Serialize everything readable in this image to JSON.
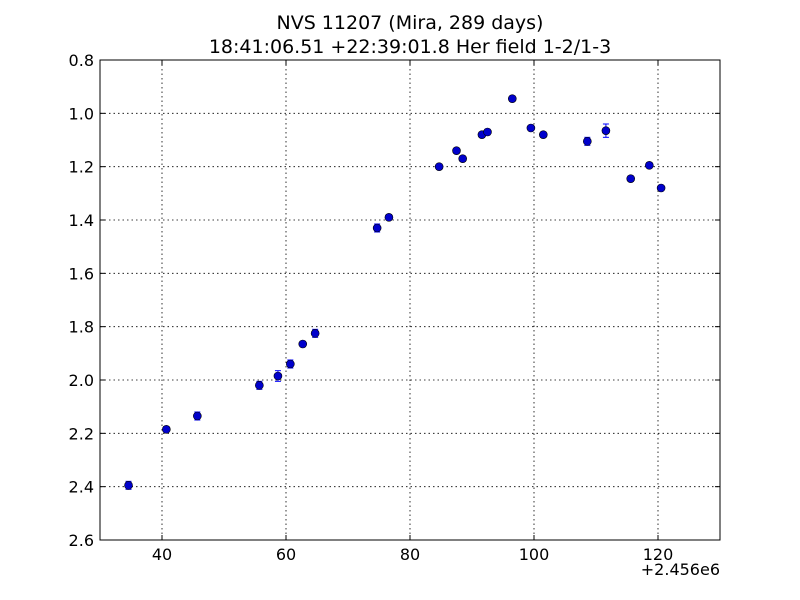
{
  "chart_data": {
    "type": "scatter",
    "title": "NVS 11207 (Mira, 289 days)",
    "subtitle": "18:41:06.51 +22:39:01.8 Her field 1-2/1-3",
    "xlabel": "",
    "ylabel": "",
    "x_offset_label": "+2.456e6",
    "xlim": [
      30,
      130
    ],
    "ylim": [
      2.6,
      0.8
    ],
    "y_inverted": true,
    "grid": true,
    "marker_color": "#0000cc",
    "errorbar_color": "#0000ff",
    "x_ticks": [
      40,
      60,
      80,
      100,
      120
    ],
    "y_ticks": [
      0.8,
      1.0,
      1.2,
      1.4,
      1.6,
      1.8,
      2.0,
      2.2,
      2.4,
      2.6
    ],
    "x_tick_labels": [
      "40",
      "60",
      "80",
      "100",
      "120"
    ],
    "y_tick_labels": [
      "0.8",
      "1.0",
      "1.2",
      "1.4",
      "1.6",
      "1.8",
      "2.0",
      "2.2",
      "2.4",
      "2.6"
    ],
    "points": [
      {
        "x": 34.6,
        "y": 2.395,
        "err": 0.015
      },
      {
        "x": 40.7,
        "y": 2.185,
        "err": 0.01
      },
      {
        "x": 45.7,
        "y": 2.135,
        "err": 0.015
      },
      {
        "x": 55.7,
        "y": 2.02,
        "err": 0.015
      },
      {
        "x": 58.7,
        "y": 1.985,
        "err": 0.02
      },
      {
        "x": 60.7,
        "y": 1.94,
        "err": 0.015
      },
      {
        "x": 62.7,
        "y": 1.865,
        "err": 0.01
      },
      {
        "x": 64.7,
        "y": 1.825,
        "err": 0.015
      },
      {
        "x": 74.7,
        "y": 1.43,
        "err": 0.015
      },
      {
        "x": 76.6,
        "y": 1.39,
        "err": 0.01
      },
      {
        "x": 84.7,
        "y": 1.2,
        "err": 0.01
      },
      {
        "x": 87.5,
        "y": 1.14,
        "err": 0.01
      },
      {
        "x": 88.5,
        "y": 1.17,
        "err": 0.01
      },
      {
        "x": 91.6,
        "y": 1.08,
        "err": 0.01
      },
      {
        "x": 92.5,
        "y": 1.07,
        "err": 0.01
      },
      {
        "x": 96.5,
        "y": 0.945,
        "err": 0.01
      },
      {
        "x": 99.5,
        "y": 1.055,
        "err": 0.01
      },
      {
        "x": 101.5,
        "y": 1.08,
        "err": 0.01
      },
      {
        "x": 108.6,
        "y": 1.105,
        "err": 0.015
      },
      {
        "x": 111.6,
        "y": 1.065,
        "err": 0.025
      },
      {
        "x": 115.6,
        "y": 1.245,
        "err": 0.01
      },
      {
        "x": 118.6,
        "y": 1.195,
        "err": 0.01
      },
      {
        "x": 120.5,
        "y": 1.28,
        "err": 0.01
      }
    ]
  }
}
